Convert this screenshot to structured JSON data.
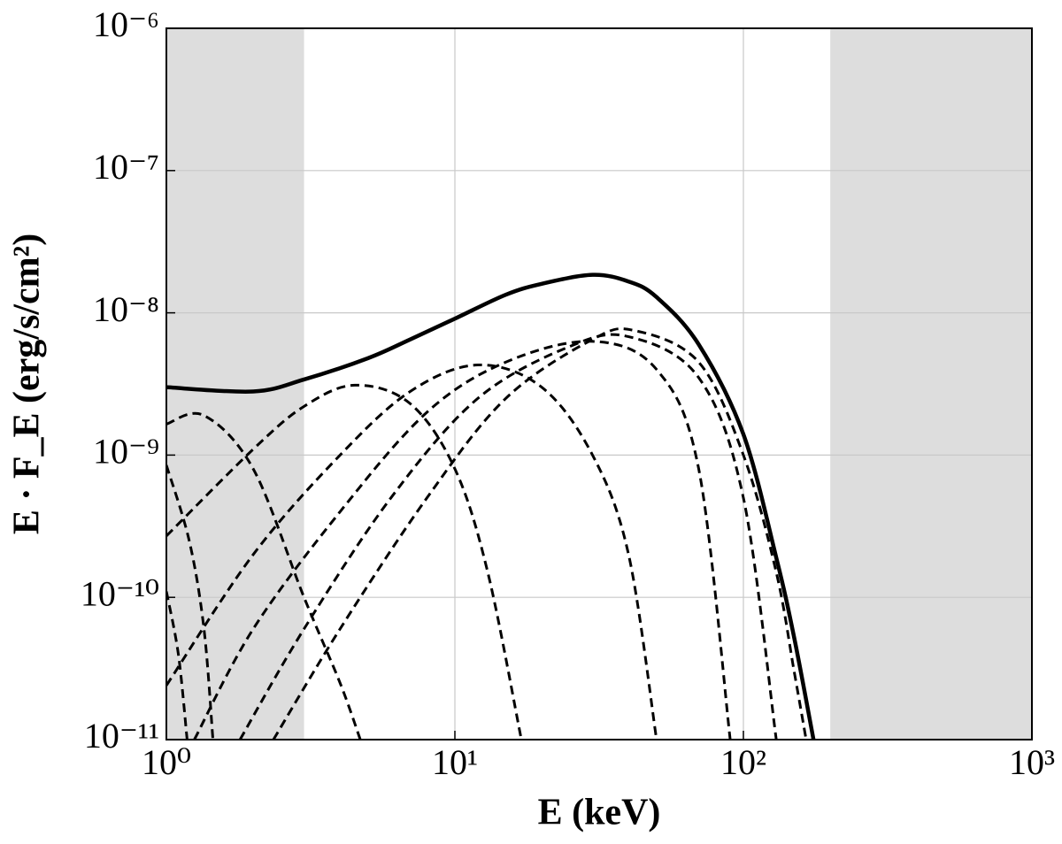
{
  "chart_data": {
    "type": "line",
    "xlabel": "E  (keV)",
    "ylabel": "E · F_E  (erg/s/cm²)",
    "xscale": "log",
    "yscale": "log",
    "xlim": [
      1,
      1000
    ],
    "ylim": [
      1e-11,
      1e-06
    ],
    "xticks": [
      {
        "value": 1,
        "label": "10⁰"
      },
      {
        "value": 10,
        "label": "10¹"
      },
      {
        "value": 100,
        "label": "10²"
      },
      {
        "value": 1000,
        "label": "10³"
      }
    ],
    "yticks": [
      {
        "value": 1e-11,
        "label": "10⁻¹¹"
      },
      {
        "value": 1e-10,
        "label": "10⁻¹⁰"
      },
      {
        "value": 1e-09,
        "label": "10⁻⁹"
      },
      {
        "value": 1e-08,
        "label": "10⁻⁸"
      },
      {
        "value": 1e-07,
        "label": "10⁻⁷"
      },
      {
        "value": 1e-06,
        "label": "10⁻⁶"
      }
    ],
    "grid": true,
    "shaded_x_ranges": [
      [
        1,
        3
      ],
      [
        200,
        1000
      ]
    ],
    "shade_color": "#dddddd",
    "series": [
      {
        "color": "#000000",
        "style": "solid",
        "x": [
          1,
          2,
          3,
          5,
          7,
          10,
          15,
          20,
          30,
          40,
          50,
          70,
          100,
          130,
          150,
          175
        ],
        "values": [
          3e-09,
          2.8e-09,
          3.4e-09,
          4.8e-09,
          6.5e-09,
          9.1e-09,
          1.34e-08,
          1.6e-08,
          1.85e-08,
          1.66e-08,
          1.29e-08,
          6e-09,
          1.4e-09,
          1.9e-10,
          5.2e-11,
          1e-11
        ]
      },
      {
        "color": "#000000",
        "style": "dashed",
        "x": [
          1,
          1.1,
          1.18
        ],
        "values": [
          1.1e-10,
          4e-11,
          1e-11
        ]
      },
      {
        "color": "#000000",
        "style": "dashed",
        "x": [
          1,
          1.2,
          1.35,
          1.45
        ],
        "values": [
          8.5e-10,
          2.5e-10,
          6e-11,
          1e-11
        ]
      },
      {
        "color": "#000000",
        "style": "dashed",
        "x": [
          1,
          1.35,
          2,
          3,
          4,
          4.7
        ],
        "values": [
          1.65e-09,
          1.9e-09,
          8e-10,
          1e-10,
          2.5e-11,
          1e-11
        ]
      },
      {
        "color": "#000000",
        "style": "dashed",
        "x": [
          1,
          2,
          3,
          4.5,
          7,
          10,
          13,
          17
        ],
        "values": [
          2.7e-10,
          1.1e-09,
          2.2e-09,
          3.1e-09,
          2.3e-09,
          8e-10,
          1.5e-10,
          1e-11
        ]
      },
      {
        "color": "#000000",
        "style": "dashed",
        "x": [
          1,
          2,
          4,
          7,
          12,
          20,
          30,
          40,
          50
        ],
        "values": [
          2.4e-11,
          2e-10,
          1e-09,
          2.8e-09,
          4.3e-09,
          3e-09,
          1e-09,
          2e-10,
          1e-11
        ]
      },
      {
        "color": "#000000",
        "style": "dashed",
        "x": [
          1.25,
          2,
          4,
          8,
          15,
          30,
          50,
          70,
          90
        ],
        "values": [
          1e-11,
          6e-11,
          4e-10,
          2e-09,
          4.5e-09,
          6.3e-09,
          4e-09,
          8e-10,
          1e-11
        ]
      },
      {
        "color": "#000000",
        "style": "dashed",
        "x": [
          1.8,
          3,
          6,
          12,
          25,
          40,
          70,
          100,
          130
        ],
        "values": [
          1e-11,
          6e-11,
          5e-10,
          2.5e-09,
          5.8e-09,
          6.8e-09,
          3.5e-09,
          5e-10,
          1e-11
        ]
      },
      {
        "color": "#000000",
        "style": "dashed",
        "x": [
          2.35,
          4,
          8,
          15,
          30,
          42,
          70,
          100,
          130,
          150,
          165
        ],
        "values": [
          1e-11,
          6e-11,
          5e-10,
          2.5e-09,
          6.5e-09,
          7.5e-09,
          4.5e-09,
          1e-09,
          1.5e-10,
          3e-11,
          1e-11
        ]
      }
    ]
  }
}
